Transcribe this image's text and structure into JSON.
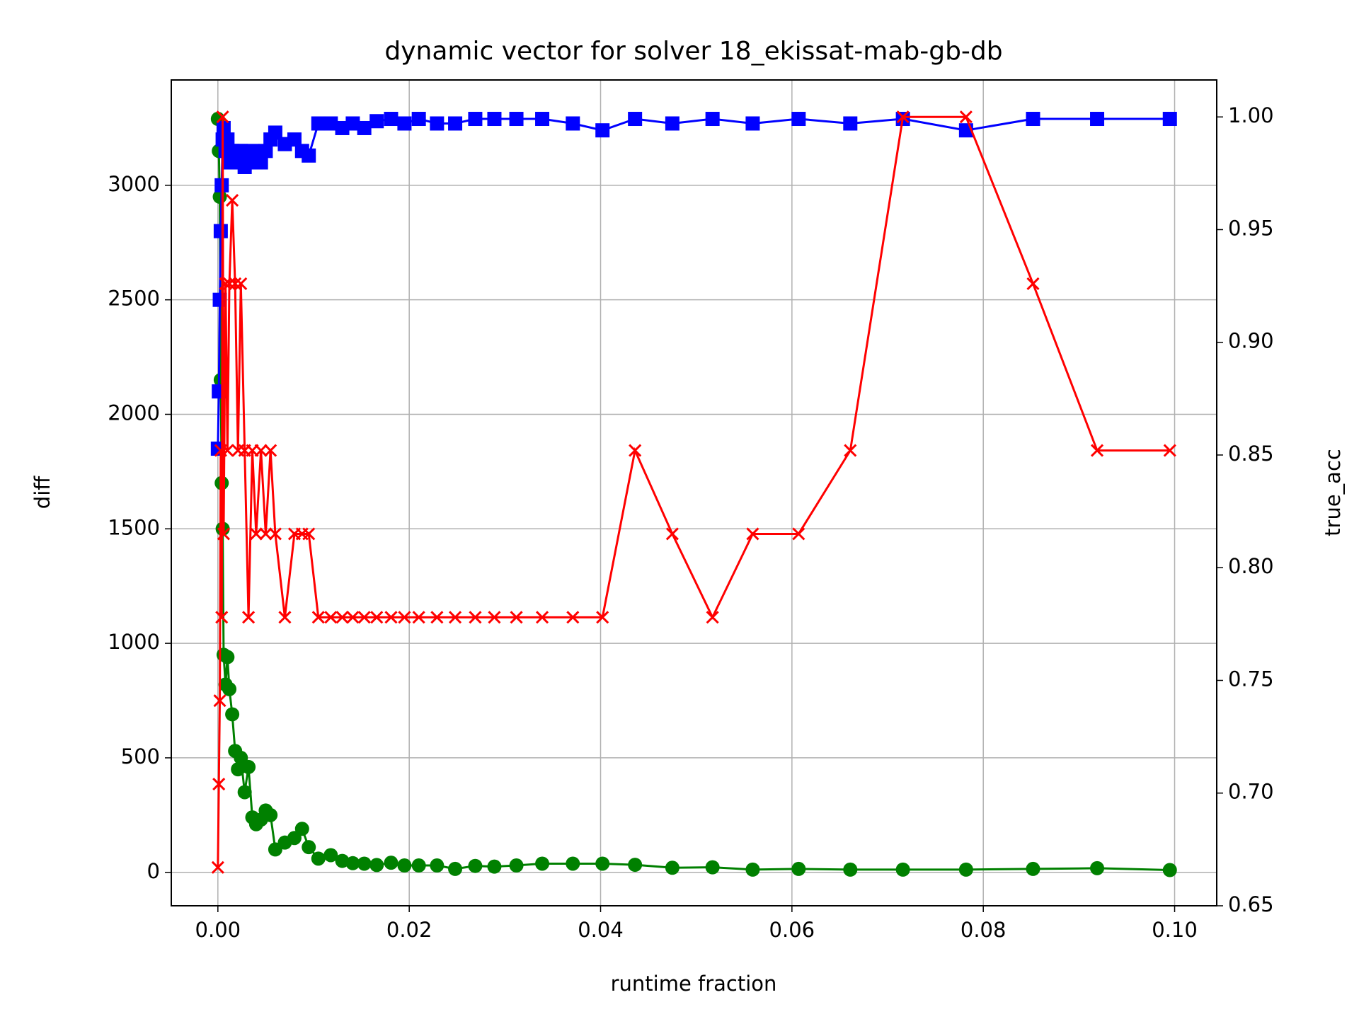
{
  "chart_data": {
    "type": "line",
    "title": "dynamic vector for solver 18_ekissat-mab-gb-db",
    "xlabel": "runtime fraction",
    "ylabel": "diff",
    "y2label": "true_acc",
    "ylabel_color": "green",
    "y2label_color": "red",
    "x": [
      0.0,
      0.0001,
      0.0002,
      0.0003,
      0.0004,
      0.0005,
      0.0006,
      0.0008,
      0.001,
      0.0012,
      0.0015,
      0.0018,
      0.0021,
      0.0024,
      0.0028,
      0.0032,
      0.0036,
      0.004,
      0.0045,
      0.005,
      0.0055,
      0.006,
      0.007,
      0.008,
      0.0088,
      0.0095,
      0.0105,
      0.0118,
      0.013,
      0.0141,
      0.0153,
      0.0166,
      0.0181,
      0.0195,
      0.021,
      0.0229,
      0.0248,
      0.0269,
      0.0289,
      0.0312,
      0.0339,
      0.0371,
      0.0402,
      0.0436,
      0.0475,
      0.0517,
      0.0559,
      0.0607,
      0.0661,
      0.0716,
      0.0782,
      0.0852,
      0.0919,
      0.0995
    ],
    "series": [
      {
        "color": "green",
        "marker": "circle",
        "values": [
          3290,
          3150,
          2950,
          2150,
          1700,
          1500,
          950,
          820,
          940,
          800,
          690,
          530,
          450,
          500,
          350,
          460,
          240,
          210,
          230,
          270,
          250,
          100,
          130,
          150,
          190,
          110,
          60,
          75,
          50,
          40,
          38,
          32,
          42,
          30,
          30,
          30,
          15,
          28,
          25,
          30,
          38,
          38,
          38,
          33,
          20,
          22,
          12,
          15,
          12,
          12,
          12,
          15,
          18,
          10
        ]
      },
      {
        "color": "blue",
        "marker": "square",
        "values": [
          1850,
          2100,
          2500,
          2800,
          3000,
          3200,
          3250,
          3150,
          3200,
          3100,
          3150,
          3100,
          3150,
          3150,
          3080,
          3100,
          3150,
          3100,
          3100,
          3150,
          3200,
          3230,
          3180,
          3200,
          3150,
          3130,
          3270,
          3270,
          3250,
          3270,
          3250,
          3280,
          3290,
          3270,
          3290,
          3270,
          3270,
          3290,
          3290,
          3290,
          3290,
          3270,
          3240,
          3290,
          3270,
          3290,
          3270,
          3290,
          3270,
          3290,
          3240,
          3290,
          3290,
          3290
        ]
      },
      {
        "color": "red",
        "marker": "x",
        "axis": "y2",
        "values": [
          0.667,
          0.704,
          0.741,
          0.852,
          0.778,
          1.0,
          0.815,
          0.926,
          0.852,
          0.926,
          0.963,
          0.926,
          0.852,
          0.926,
          0.852,
          0.778,
          0.852,
          0.815,
          0.852,
          0.815,
          0.852,
          0.815,
          0.778,
          0.815,
          0.815,
          0.815,
          0.778,
          0.778,
          0.778,
          0.778,
          0.778,
          0.778,
          0.778,
          0.778,
          0.778,
          0.778,
          0.778,
          0.778,
          0.778,
          0.778,
          0.778,
          0.778,
          0.778,
          0.852,
          0.815,
          0.778,
          0.815,
          0.815,
          0.852,
          1.0,
          1.0,
          0.926,
          0.852,
          0.852
        ]
      }
    ],
    "xlim": [
      -0.00487,
      0.1044
    ],
    "xticks": [
      {
        "value": 0,
        "label": "0.00"
      },
      {
        "value": 0.02,
        "label": "0.02"
      },
      {
        "value": 0.04,
        "label": "0.04"
      },
      {
        "value": 0.06,
        "label": "0.06"
      },
      {
        "value": 0.08,
        "label": "0.08"
      },
      {
        "value": 0.1,
        "label": "0.10"
      }
    ],
    "ylim": [
      -146,
      3460
    ],
    "yticks": [
      0,
      500,
      1000,
      1500,
      2000,
      2500,
      3000
    ],
    "y2lim": [
      0.65,
      1.0164
    ],
    "y2ticks": [
      {
        "value": 0.65,
        "label": "0.65"
      },
      {
        "value": 0.7,
        "label": "0.70"
      },
      {
        "value": 0.75,
        "label": "0.75"
      },
      {
        "value": 0.8,
        "label": "0.80"
      },
      {
        "value": 0.85,
        "label": "0.85"
      },
      {
        "value": 0.9,
        "label": "0.90"
      },
      {
        "value": 0.95,
        "label": "0.95"
      },
      {
        "value": 1.0,
        "label": "1.00"
      }
    ],
    "grid": true
  }
}
